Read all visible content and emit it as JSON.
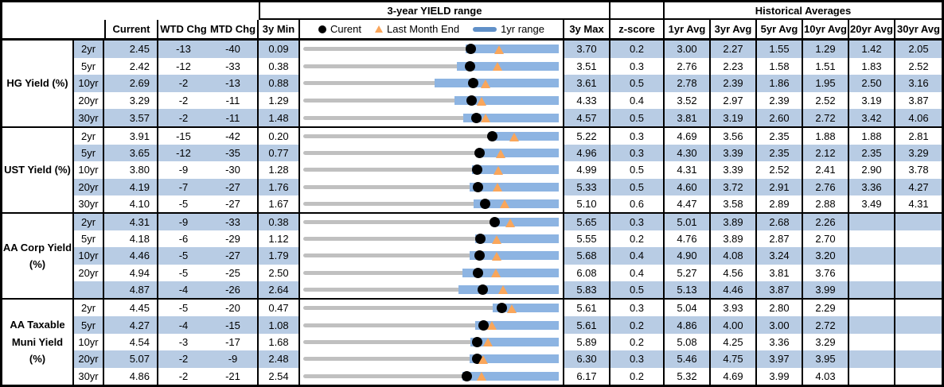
{
  "header": {
    "range_title": "3-year YIELD range",
    "hist_title": "Historical Averages",
    "col_current": "Current",
    "col_wtd_chg": "WTD Chg",
    "col_mtd_chg": "MTD Chg",
    "col_3y_min": "3y Min",
    "col_3y_max": "3y Max",
    "col_z_score": "z-score",
    "avg_cols": [
      "1yr Avg",
      "3yr Avg",
      "5yr Avg",
      "10yr Avg",
      "20yr Avg",
      "30yr Avg"
    ],
    "legend": {
      "current_label": "Curent",
      "last_month_label": "Last Month End",
      "range_label": "1yr range"
    }
  },
  "colors": {
    "row_shade": "#B8CCE4",
    "range_bar": "#8DB4E2",
    "track": "#C0C0C0",
    "current_dot": "#000000",
    "last_month_triangle": "#F9A65B",
    "legend_bar": "#6090C8"
  },
  "chart_data": {
    "type": "table",
    "title": "3-year YIELD range",
    "notes": "Each row: gray track spans 3y Min to 3y Max; blue bar is 1yr range (ends at 3y Max); black dot = Current; orange triangle = Last Month End (Current - MTD Chg bps).",
    "groups": [
      {
        "label_lines": [
          "HG Yield (%)"
        ],
        "rows": [
          {
            "tenor": "2yr",
            "current": "2.45",
            "wtd": "-13",
            "mtd": "-40",
            "min": "0.09",
            "max": "3.70",
            "z": "0.2",
            "avgs": [
              "3.00",
              "2.27",
              "1.55",
              "1.29",
              "1.42",
              "2.05"
            ],
            "last_month": 2.85,
            "one_yr_low": 2.38
          },
          {
            "tenor": "5yr",
            "current": "2.42",
            "wtd": "-12",
            "mtd": "-33",
            "min": "0.38",
            "max": "3.51",
            "z": "0.3",
            "avgs": [
              "2.76",
              "2.23",
              "1.58",
              "1.51",
              "1.83",
              "2.52"
            ],
            "last_month": 2.75,
            "one_yr_low": 2.26
          },
          {
            "tenor": "10yr",
            "current": "2.69",
            "wtd": "-2",
            "mtd": "-13",
            "min": "0.88",
            "max": "3.61",
            "z": "0.5",
            "avgs": [
              "2.78",
              "2.39",
              "1.86",
              "1.95",
              "2.50",
              "3.16"
            ],
            "last_month": 2.82,
            "one_yr_low": 2.28
          },
          {
            "tenor": "20yr",
            "current": "3.29",
            "wtd": "-2",
            "mtd": "-11",
            "min": "1.29",
            "max": "4.33",
            "z": "0.4",
            "avgs": [
              "3.52",
              "2.97",
              "2.39",
              "2.52",
              "3.19",
              "3.87"
            ],
            "last_month": 3.4,
            "one_yr_low": 3.08
          },
          {
            "tenor": "30yr",
            "current": "3.57",
            "wtd": "-2",
            "mtd": "-11",
            "min": "1.48",
            "max": "4.57",
            "z": "0.5",
            "avgs": [
              "3.81",
              "3.19",
              "2.60",
              "2.72",
              "3.42",
              "4.06"
            ],
            "last_month": 3.68,
            "one_yr_low": 3.41
          }
        ]
      },
      {
        "label_lines": [
          "UST Yield (%)"
        ],
        "rows": [
          {
            "tenor": "2yr",
            "current": "3.91",
            "wtd": "-15",
            "mtd": "-42",
            "min": "0.20",
            "max": "5.22",
            "z": "0.3",
            "avgs": [
              "4.69",
              "3.56",
              "2.35",
              "1.88",
              "1.88",
              "2.81"
            ],
            "last_month": 4.33,
            "one_yr_low": 3.84
          },
          {
            "tenor": "5yr",
            "current": "3.65",
            "wtd": "-12",
            "mtd": "-35",
            "min": "0.77",
            "max": "4.96",
            "z": "0.3",
            "avgs": [
              "4.30",
              "3.39",
              "2.35",
              "2.12",
              "2.35",
              "3.29"
            ],
            "last_month": 4.0,
            "one_yr_low": 3.62
          },
          {
            "tenor": "10yr",
            "current": "3.80",
            "wtd": "-9",
            "mtd": "-30",
            "min": "1.28",
            "max": "4.99",
            "z": "0.5",
            "avgs": [
              "4.31",
              "3.39",
              "2.52",
              "2.41",
              "2.90",
              "3.78"
            ],
            "last_month": 4.1,
            "one_yr_low": 3.72
          },
          {
            "tenor": "20yr",
            "current": "4.19",
            "wtd": "-7",
            "mtd": "-27",
            "min": "1.76",
            "max": "5.33",
            "z": "0.5",
            "avgs": [
              "4.60",
              "3.72",
              "2.91",
              "2.76",
              "3.36",
              "4.27"
            ],
            "last_month": 4.46,
            "one_yr_low": 4.08
          },
          {
            "tenor": "30yr",
            "current": "4.10",
            "wtd": "-5",
            "mtd": "-27",
            "min": "1.67",
            "max": "5.10",
            "z": "0.6",
            "avgs": [
              "4.47",
              "3.58",
              "2.89",
              "2.88",
              "3.49",
              "4.31"
            ],
            "last_month": 4.37,
            "one_yr_low": 3.95
          }
        ]
      },
      {
        "label_lines": [
          "AA Corp Yield",
          "(%)"
        ],
        "rows": [
          {
            "tenor": "2yr",
            "current": "4.31",
            "wtd": "-9",
            "mtd": "-33",
            "min": "0.38",
            "max": "5.65",
            "z": "0.3",
            "avgs": [
              "5.01",
              "3.89",
              "2.68",
              "2.26",
              "",
              ""
            ],
            "last_month": 4.64,
            "one_yr_low": 4.26
          },
          {
            "tenor": "5yr",
            "current": "4.18",
            "wtd": "-6",
            "mtd": "-29",
            "min": "1.12",
            "max": "5.55",
            "z": "0.2",
            "avgs": [
              "4.76",
              "3.89",
              "2.87",
              "2.70",
              "",
              ""
            ],
            "last_month": 4.47,
            "one_yr_low": 4.09
          },
          {
            "tenor": "10yr",
            "current": "4.46",
            "wtd": "-5",
            "mtd": "-27",
            "min": "1.79",
            "max": "5.68",
            "z": "0.4",
            "avgs": [
              "4.90",
              "4.08",
              "3.24",
              "3.20",
              "",
              ""
            ],
            "last_month": 4.73,
            "one_yr_low": 4.32
          },
          {
            "tenor": "20yr",
            "current": "4.94",
            "wtd": "-5",
            "mtd": "-25",
            "min": "2.50",
            "max": "6.08",
            "z": "0.4",
            "avgs": [
              "5.27",
              "4.56",
              "3.81",
              "3.76",
              "",
              ""
            ],
            "last_month": 5.19,
            "one_yr_low": 4.72
          },
          {
            "tenor": "",
            "current": "4.87",
            "wtd": "-4",
            "mtd": "-26",
            "min": "2.64",
            "max": "5.83",
            "z": "0.5",
            "avgs": [
              "5.13",
              "4.46",
              "3.87",
              "3.99",
              "",
              ""
            ],
            "last_month": 5.13,
            "one_yr_low": 4.57
          }
        ]
      },
      {
        "label_lines": [
          "AA Taxable",
          "Muni Yield",
          "(%)"
        ],
        "rows": [
          {
            "tenor": "2yr",
            "current": "4.45",
            "wtd": "-5",
            "mtd": "-20",
            "min": "0.47",
            "max": "5.61",
            "z": "0.3",
            "avgs": [
              "5.04",
              "3.93",
              "2.80",
              "2.29",
              "",
              ""
            ],
            "last_month": 4.65,
            "one_yr_low": 4.27
          },
          {
            "tenor": "5yr",
            "current": "4.27",
            "wtd": "-4",
            "mtd": "-15",
            "min": "1.08",
            "max": "5.61",
            "z": "0.2",
            "avgs": [
              "4.86",
              "4.00",
              "3.00",
              "2.72",
              "",
              ""
            ],
            "last_month": 4.42,
            "one_yr_low": 4.12
          },
          {
            "tenor": "10yr",
            "current": "4.54",
            "wtd": "-3",
            "mtd": "-17",
            "min": "1.68",
            "max": "5.89",
            "z": "0.2",
            "avgs": [
              "5.08",
              "4.25",
              "3.36",
              "3.29",
              "",
              ""
            ],
            "last_month": 4.71,
            "one_yr_low": 4.43
          },
          {
            "tenor": "20yr",
            "current": "5.07",
            "wtd": "-2",
            "mtd": "-9",
            "min": "2.48",
            "max": "6.30",
            "z": "0.3",
            "avgs": [
              "5.46",
              "4.75",
              "3.97",
              "3.95",
              "",
              ""
            ],
            "last_month": 5.16,
            "one_yr_low": 4.96
          },
          {
            "tenor": "30yr",
            "current": "4.86",
            "wtd": "-2",
            "mtd": "-21",
            "min": "2.54",
            "max": "6.17",
            "z": "0.2",
            "avgs": [
              "5.32",
              "4.69",
              "3.99",
              "4.03",
              "",
              ""
            ],
            "last_month": 5.07,
            "one_yr_low": 4.79
          }
        ]
      }
    ]
  }
}
